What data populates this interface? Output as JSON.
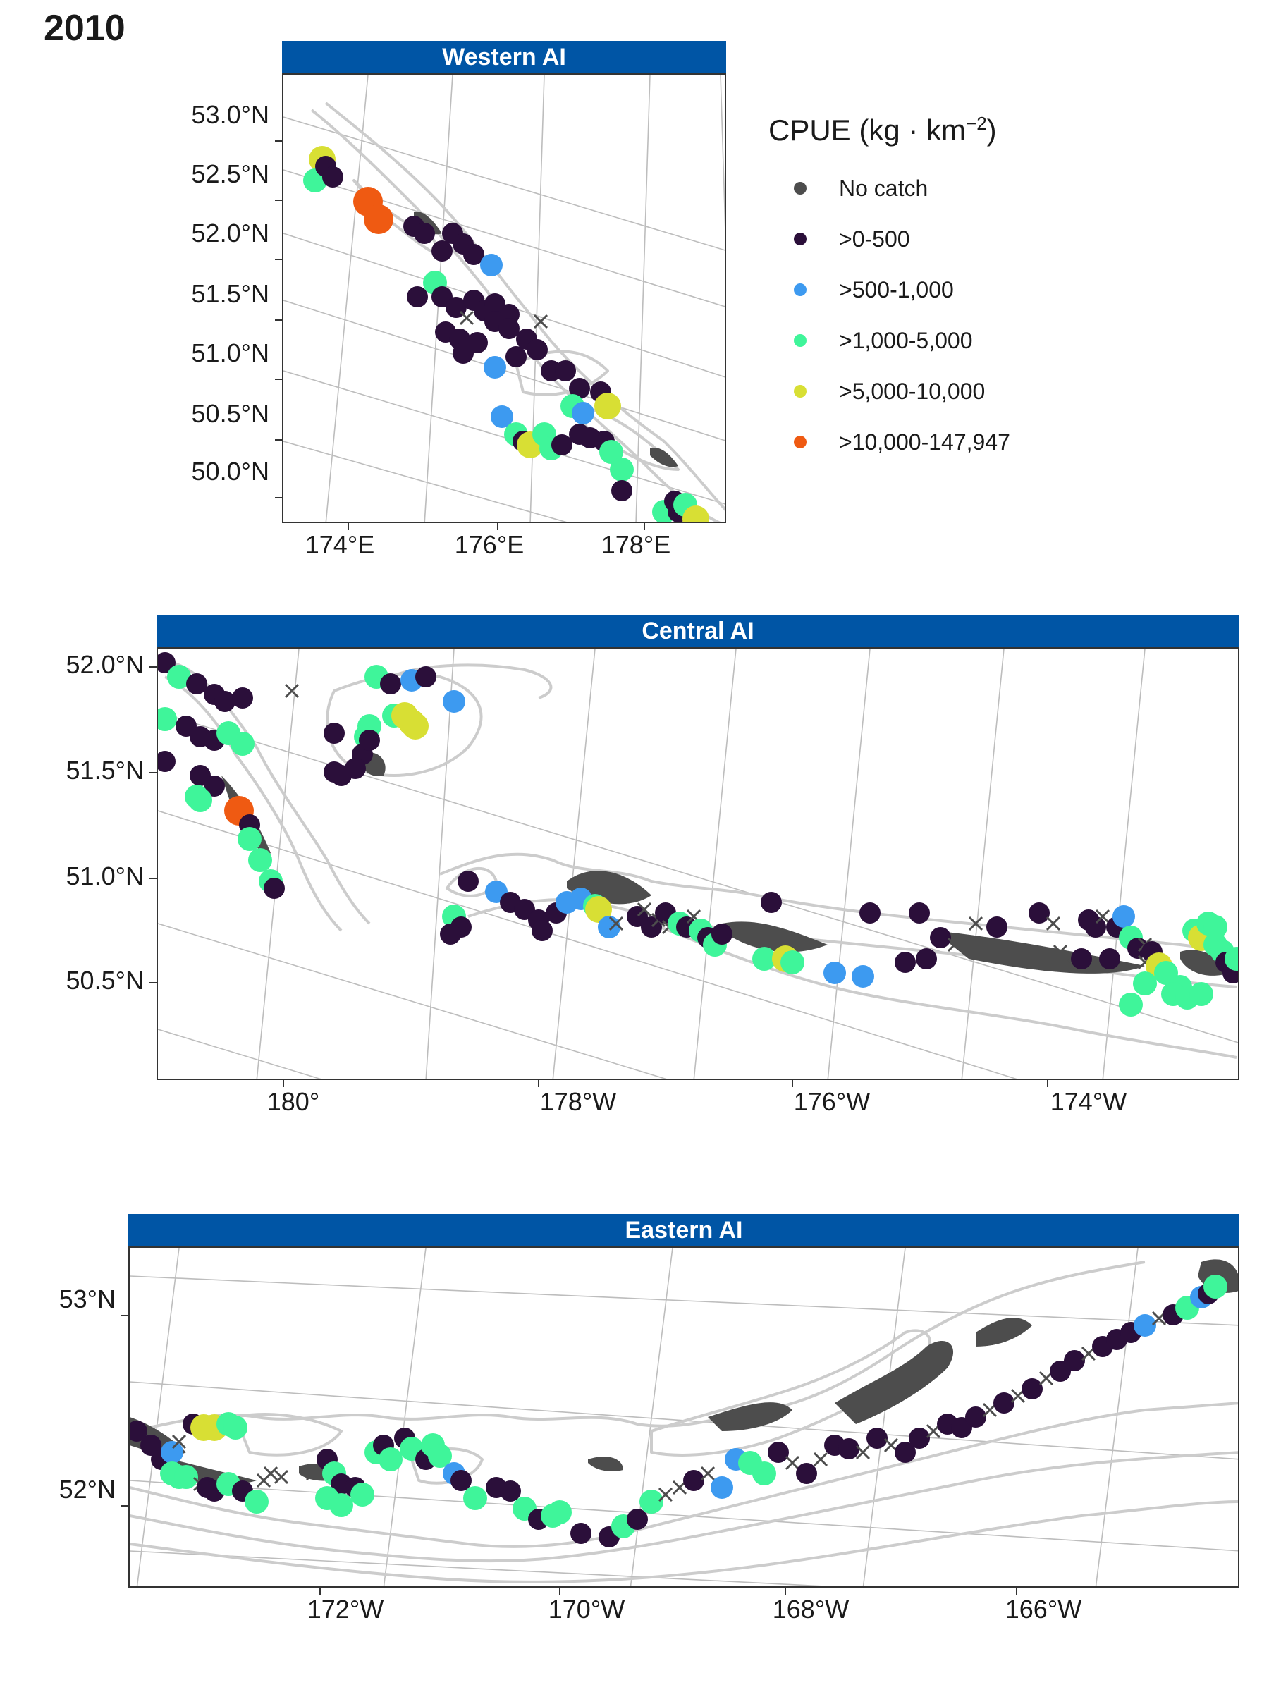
{
  "title": "2010",
  "legend": {
    "title_main": "CPUE (kg · km",
    "title_sup": "−2",
    "title_end": ")",
    "items": [
      {
        "label": "No catch",
        "color": "#4d4d4d"
      },
      {
        "label": ">0-500",
        "color": "#2b0f3a"
      },
      {
        "label": ">500-1,000",
        "color": "#3d9af0"
      },
      {
        "label": ">1,000-5,000",
        "color": "#3ff59a"
      },
      {
        "label": ">5,000-10,000",
        "color": "#d8df34"
      },
      {
        "label": ">10,000-147,947",
        "color": "#ef5a12"
      }
    ]
  },
  "panels": [
    {
      "name": "Western AI",
      "y_ticks": [
        "53.0°N",
        "52.5°N",
        "52.0°N",
        "51.5°N",
        "51.0°N",
        "50.5°N",
        "50.0°N"
      ],
      "x_ticks": [
        "174°E",
        "176°E",
        "178°E"
      ]
    },
    {
      "name": "Central AI",
      "y_ticks": [
        "52.0°N",
        "51.5°N",
        "51.0°N",
        "50.5°N"
      ],
      "x_ticks": [
        "180°",
        "178°W",
        "176°W",
        "174°W"
      ]
    },
    {
      "name": "Eastern AI",
      "y_ticks": [
        "53°N",
        "52°N"
      ],
      "x_ticks": [
        "172°W",
        "170°W",
        "168°W",
        "166°W"
      ]
    }
  ],
  "colors": {
    "strip": "#0055a5",
    "land": "#4d4d4d",
    "bathymetry": "#cccccc",
    "graticule": "#bdbdbd"
  }
}
